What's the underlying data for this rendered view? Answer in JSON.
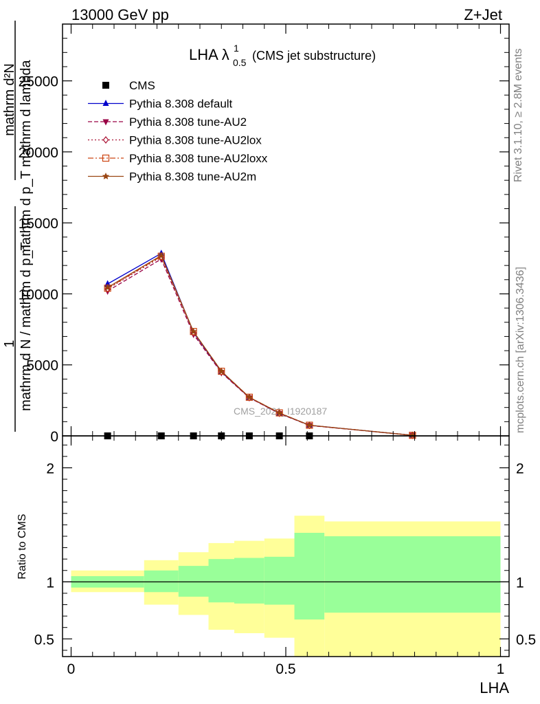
{
  "header": {
    "energy_label": "13000 GeV pp",
    "process_label": "Z+Jet"
  },
  "side_labels": {
    "rivet": "Rivet 3.1.10, ≥ 2.8M events",
    "mcplots": "mcplots.cern.ch [arXiv:1306.3436]"
  },
  "watermark": "CMS_2021_I1920187",
  "title": {
    "main": "LHA λ",
    "sup": "1",
    "sub": "0.5",
    "suffix": "(CMS jet substructure)"
  },
  "chart_data": [
    {
      "type": "line",
      "panel": "main",
      "ylabel_numerator_top": "mathrm d²N",
      "ylabel_denominator_top": "mathrm d p_T mathrm d lambda",
      "ylabel_numerator_bottom": "1",
      "ylabel_denominator_bottom": "mathrm d N / mathrm d p_T",
      "ylim": [
        0,
        29000
      ],
      "yticks": [
        0,
        5000,
        10000,
        15000,
        20000,
        25000
      ],
      "yticklabels": [
        "0",
        "5000",
        "10000",
        "15000",
        "20000",
        "25000"
      ],
      "xlim": [
        -0.02,
        1.02
      ],
      "legend_position": "top-left",
      "series": [
        {
          "name": "CMS",
          "marker": "square",
          "color": "#000000",
          "x": [
            0.085,
            0.21,
            0.285,
            0.35,
            0.415,
            0.485,
            0.555
          ],
          "y": [
            0,
            0,
            0,
            0,
            0,
            0,
            0
          ]
        },
        {
          "name": "Pythia 8.308 default",
          "marker": "triangle-up",
          "dash": "solid",
          "color": "#0000cc",
          "x": [
            0.085,
            0.21,
            0.285,
            0.35,
            0.415,
            0.485,
            0.555,
            0.795
          ],
          "y": [
            10700,
            12850,
            7300,
            4500,
            2700,
            1600,
            750,
            40
          ]
        },
        {
          "name": "Pythia 8.308 tune-AU2",
          "marker": "triangle-down",
          "dash": "dashed",
          "color": "#990044",
          "x": [
            0.085,
            0.21,
            0.285,
            0.35,
            0.415,
            0.485,
            0.555,
            0.795
          ],
          "y": [
            10200,
            12450,
            7150,
            4450,
            2680,
            1580,
            730,
            40
          ]
        },
        {
          "name": "Pythia 8.308 tune-AU2lox",
          "marker": "diamond-open",
          "dash": "dotted",
          "color": "#aa1133",
          "x": [
            0.085,
            0.21,
            0.285,
            0.35,
            0.415,
            0.485,
            0.555,
            0.795
          ],
          "y": [
            10350,
            12600,
            7250,
            4500,
            2700,
            1600,
            740,
            40
          ]
        },
        {
          "name": "Pythia 8.308 tune-AU2loxx",
          "marker": "square-open",
          "dash": "dashdot",
          "color": "#cc4411",
          "x": [
            0.085,
            0.21,
            0.285,
            0.35,
            0.415,
            0.485,
            0.555,
            0.795
          ],
          "y": [
            10400,
            12650,
            7350,
            4550,
            2720,
            1620,
            750,
            40
          ]
        },
        {
          "name": "Pythia 8.308 tune-AU2m",
          "marker": "star",
          "dash": "solid",
          "color": "#994411",
          "x": [
            0.085,
            0.21,
            0.285,
            0.35,
            0.415,
            0.485,
            0.555,
            0.795
          ],
          "y": [
            10450,
            12700,
            7350,
            4550,
            2720,
            1610,
            750,
            40
          ]
        }
      ]
    },
    {
      "type": "area",
      "panel": "ratio",
      "ylabel": "Ratio to CMS",
      "xlabel": "LHA",
      "ylim": [
        0.345,
        2.28
      ],
      "yticks": [
        0.5,
        1,
        2
      ],
      "yticklabels": [
        "0.5",
        "1",
        "2"
      ],
      "xlim": [
        -0.02,
        1.02
      ],
      "xticks": [
        0,
        0.5,
        1
      ],
      "xticklabels": [
        "0",
        "0.5",
        "1"
      ],
      "reference_line": 1,
      "bins": [
        {
          "lo": 0.0,
          "hi": 0.17,
          "green": [
            0.95,
            1.05
          ],
          "yellow": [
            0.91,
            1.1
          ]
        },
        {
          "lo": 0.17,
          "hi": 0.25,
          "green": [
            0.91,
            1.1
          ],
          "yellow": [
            0.8,
            1.19
          ]
        },
        {
          "lo": 0.25,
          "hi": 0.32,
          "green": [
            0.87,
            1.14
          ],
          "yellow": [
            0.71,
            1.26
          ]
        },
        {
          "lo": 0.32,
          "hi": 0.38,
          "green": [
            0.82,
            1.2
          ],
          "yellow": [
            0.58,
            1.34
          ]
        },
        {
          "lo": 0.38,
          "hi": 0.45,
          "green": [
            0.81,
            1.21
          ],
          "yellow": [
            0.55,
            1.36
          ]
        },
        {
          "lo": 0.45,
          "hi": 0.52,
          "green": [
            0.8,
            1.22
          ],
          "yellow": [
            0.51,
            1.38
          ]
        },
        {
          "lo": 0.52,
          "hi": 0.59,
          "green": [
            0.67,
            1.43
          ],
          "yellow": [
            0.345,
            1.58
          ]
        },
        {
          "lo": 0.59,
          "hi": 1.0,
          "green": [
            0.73,
            1.4
          ],
          "yellow": [
            0.345,
            1.53
          ]
        }
      ]
    }
  ]
}
